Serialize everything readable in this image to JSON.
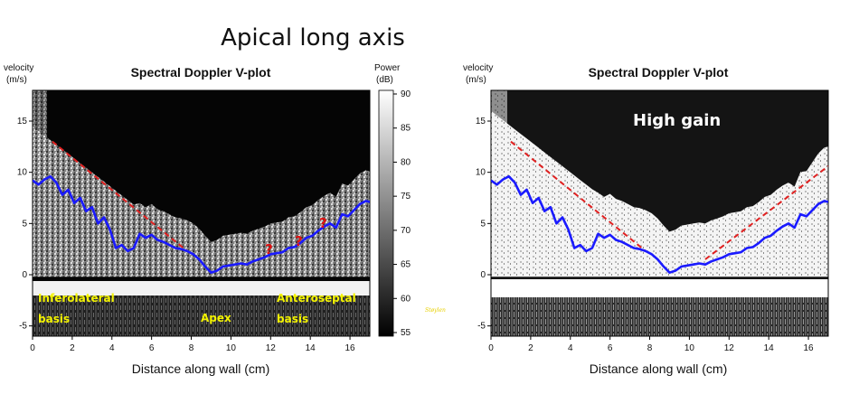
{
  "page_title": "Apical long axis",
  "signature": "Støylen",
  "colorbar": {
    "label_line1": "Power",
    "label_line2": "(dB)",
    "ticks": [
      55,
      60,
      65,
      70,
      75,
      80,
      85,
      90
    ],
    "range": [
      55,
      90
    ]
  },
  "chart_data": [
    {
      "type": "line",
      "title": "Spectral Doppler V-plot",
      "xlabel": "Distance along wall (cm)",
      "ylabel_line1": "velocity",
      "ylabel_line2": "(m/s)",
      "xlim": [
        0,
        17
      ],
      "ylim": [
        -6,
        18
      ],
      "xticks": [
        0,
        2,
        4,
        6,
        8,
        10,
        12,
        14,
        16
      ],
      "yticks": [
        -5,
        0,
        5,
        10,
        15
      ],
      "series": [
        {
          "color": "#1a1aff",
          "x": [
            0,
            0.3,
            0.6,
            0.9,
            1.2,
            1.5,
            1.8,
            2.1,
            2.4,
            2.7,
            3.0,
            3.3,
            3.6,
            3.9,
            4.2,
            4.5,
            4.8,
            5.1,
            5.4,
            5.7,
            6.0,
            6.3,
            6.6,
            6.9,
            7.2,
            7.5,
            7.8,
            8.1,
            8.4,
            8.7,
            9.0,
            9.3,
            9.6,
            9.9,
            10.2,
            10.5,
            10.8,
            11.1,
            11.4,
            11.7,
            12.0,
            12.3,
            12.6,
            12.9,
            13.2,
            13.5,
            13.8,
            14.1,
            14.4,
            14.7,
            15.0,
            15.3,
            15.6,
            15.9,
            16.2,
            16.5,
            16.8,
            17.0
          ],
          "y": [
            9.2,
            8.8,
            9.3,
            9.6,
            9.0,
            7.8,
            8.3,
            7.0,
            7.5,
            6.2,
            6.6,
            5.0,
            5.6,
            4.4,
            2.6,
            2.9,
            2.3,
            2.6,
            4.0,
            3.6,
            3.9,
            3.4,
            3.2,
            2.9,
            2.6,
            2.5,
            2.3,
            2.0,
            1.5,
            0.8,
            0.2,
            0.4,
            0.8,
            0.9,
            1.0,
            1.1,
            1.0,
            1.3,
            1.5,
            1.7,
            2.0,
            2.1,
            2.2,
            2.6,
            2.7,
            3.1,
            3.6,
            3.8,
            4.3,
            4.7,
            5.0,
            4.6,
            5.9,
            5.7,
            6.3,
            6.9,
            7.2,
            7.1
          ]
        }
      ],
      "dashed_lines": [
        {
          "color": "#e02020",
          "x": [
            1.0,
            7.8
          ],
          "y": [
            13.0,
            2.3
          ]
        }
      ],
      "annotations": [
        "Inferolateral",
        "basis",
        "Apex",
        "Anteroseptal",
        "basis",
        "?",
        "?",
        "?"
      ]
    },
    {
      "type": "line",
      "title": "Spectral Doppler V-plot",
      "xlabel": "Distance along wall (cm)",
      "ylabel_line1": "velocity",
      "ylabel_line2": "(m/s)",
      "xlim": [
        0,
        17
      ],
      "ylim": [
        -6,
        18
      ],
      "xticks": [
        0,
        2,
        4,
        6,
        8,
        10,
        12,
        14,
        16
      ],
      "yticks": [
        -5,
        0,
        5,
        10,
        15
      ],
      "series": [
        {
          "color": "#1a1aff",
          "x": [
            0,
            0.3,
            0.6,
            0.9,
            1.2,
            1.5,
            1.8,
            2.1,
            2.4,
            2.7,
            3.0,
            3.3,
            3.6,
            3.9,
            4.2,
            4.5,
            4.8,
            5.1,
            5.4,
            5.7,
            6.0,
            6.3,
            6.6,
            6.9,
            7.2,
            7.5,
            7.8,
            8.1,
            8.4,
            8.7,
            9.0,
            9.3,
            9.6,
            9.9,
            10.2,
            10.5,
            10.8,
            11.1,
            11.4,
            11.7,
            12.0,
            12.3,
            12.6,
            12.9,
            13.2,
            13.5,
            13.8,
            14.1,
            14.4,
            14.7,
            15.0,
            15.3,
            15.6,
            15.9,
            16.2,
            16.5,
            16.8,
            17.0
          ],
          "y": [
            9.2,
            8.8,
            9.3,
            9.6,
            9.0,
            7.8,
            8.3,
            7.0,
            7.5,
            6.2,
            6.6,
            5.0,
            5.6,
            4.4,
            2.6,
            2.9,
            2.3,
            2.6,
            4.0,
            3.6,
            3.9,
            3.4,
            3.2,
            2.9,
            2.6,
            2.5,
            2.3,
            2.0,
            1.5,
            0.8,
            0.2,
            0.4,
            0.8,
            0.9,
            1.0,
            1.1,
            1.0,
            1.3,
            1.5,
            1.7,
            2.0,
            2.1,
            2.2,
            2.6,
            2.7,
            3.1,
            3.6,
            3.8,
            4.3,
            4.7,
            5.0,
            4.6,
            5.9,
            5.7,
            6.3,
            6.9,
            7.2,
            7.1
          ]
        }
      ],
      "dashed_lines": [
        {
          "color": "#e02020",
          "x": [
            1.0,
            7.8
          ],
          "y": [
            13.0,
            2.3
          ]
        },
        {
          "color": "#e02020",
          "x": [
            10.8,
            17.0
          ],
          "y": [
            1.5,
            10.6
          ]
        }
      ],
      "annotations": [
        "High gain"
      ]
    }
  ]
}
